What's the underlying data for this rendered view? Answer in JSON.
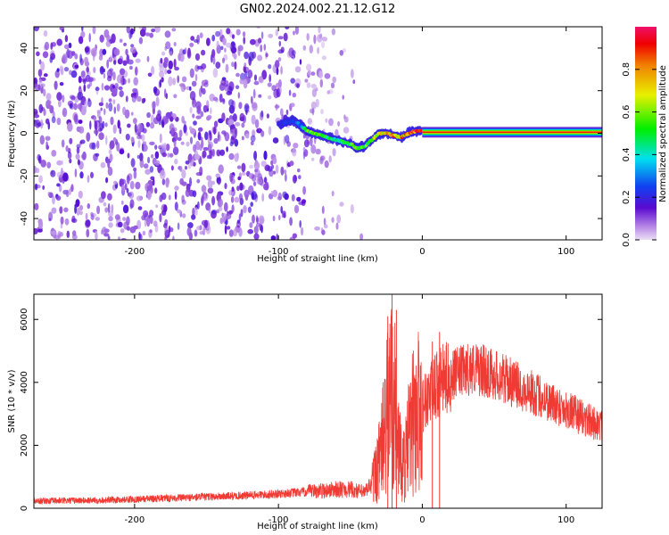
{
  "title": "GN02.2024.002.21.12.G12",
  "colors": {
    "snr_line": "#f03a34",
    "spectrogram_noise": "#8a2be2",
    "colorbar": [
      "#e8d8f4",
      "#5a0ad0",
      "#1040f0",
      "#00e8f0",
      "#00f000",
      "#f0f000",
      "#f00000",
      "#f0106a"
    ]
  },
  "chart_data": [
    {
      "type": "heatmap",
      "xlabel": "Height of straight line (km)",
      "ylabel": "Frequency (Hz)",
      "xlim": [
        -270,
        125
      ],
      "ylim": [
        -50,
        50
      ],
      "x_ticks": [
        -200,
        -100,
        0,
        100
      ],
      "y_ticks": [
        -40,
        -20,
        0,
        20,
        40
      ],
      "tick_labels_x": [
        "-200",
        "-100",
        "0",
        "100"
      ],
      "tick_labels_y": [
        "-40",
        "-20",
        "0",
        "20",
        "40"
      ],
      "colorbar": {
        "label": "Normalized spectral amplitude",
        "range": [
          0,
          1
        ],
        "ticks": [
          0.0,
          0.2,
          0.4,
          0.6,
          0.8
        ],
        "tick_labels": [
          "0.0",
          "0.2",
          "0.4",
          "0.6",
          "0.8"
        ]
      },
      "noise_region_x": [
        -270,
        -50
      ],
      "ridge": {
        "x": [
          -100,
          -95,
          -90,
          -85,
          -80,
          -75,
          -70,
          -65,
          -60,
          -55,
          -50,
          -45,
          -40,
          -35,
          -30,
          -25,
          -20,
          -15,
          -10,
          -5,
          0,
          10,
          50,
          125
        ],
        "freq_hz": [
          4,
          5,
          6,
          4,
          1,
          0,
          -1,
          -2,
          -3,
          -4,
          -5,
          -7,
          -6,
          -3,
          0,
          0,
          -1,
          -2,
          0,
          1,
          1,
          0.5,
          0.5,
          0.5
        ],
        "amplitude": [
          0.2,
          0.25,
          0.25,
          0.3,
          0.55,
          0.6,
          0.55,
          0.5,
          0.45,
          0.5,
          0.55,
          0.6,
          0.55,
          0.6,
          0.7,
          0.75,
          0.8,
          0.8,
          0.85,
          0.9,
          0.95,
          1.0,
          1.0,
          1.0
        ]
      }
    },
    {
      "type": "line",
      "xlabel": "Height of straight line (km)",
      "ylabel": "SNR (10 * v/v)",
      "xlim": [
        -270,
        125
      ],
      "ylim": [
        0,
        6800
      ],
      "x_ticks": [
        -200,
        -100,
        0,
        100
      ],
      "y_ticks": [
        0,
        2000,
        4000,
        6000
      ],
      "tick_labels_x": [
        "-200",
        "-100",
        "0",
        "100"
      ],
      "tick_labels_y": [
        "0",
        "2000",
        "4000",
        "6000"
      ],
      "series": [
        {
          "x": [
            -270,
            -250,
            -230,
            -210,
            -190,
            -170,
            -150,
            -130,
            -110,
            -100,
            -90,
            -80,
            -70,
            -60,
            -50,
            -45,
            -40,
            -35,
            -30,
            -28,
            -25,
            -23,
            -20,
            -18,
            -15,
            -12,
            -10,
            -8,
            -5,
            0,
            5,
            10,
            15,
            20,
            25,
            30,
            35,
            40,
            50,
            60,
            70,
            80,
            90,
            100,
            110,
            125
          ],
          "y": [
            230,
            240,
            250,
            270,
            300,
            330,
            360,
            390,
            430,
            460,
            490,
            520,
            560,
            600,
            600,
            550,
            500,
            800,
            1500,
            2000,
            2700,
            3500,
            4000,
            2500,
            1500,
            1400,
            2000,
            2500,
            2900,
            3300,
            3600,
            3900,
            4100,
            4200,
            4300,
            4400,
            4450,
            4400,
            4250,
            4050,
            3800,
            3600,
            3350,
            3150,
            2900,
            2600
          ]
        }
      ],
      "spikes": [
        {
          "x": -24,
          "y": 6100
        },
        {
          "x": -21,
          "y": 6800
        },
        {
          "x": -18,
          "y": 6300
        },
        {
          "x": 12,
          "y": 5600
        },
        {
          "x": 7,
          "y": 5300
        }
      ]
    }
  ]
}
